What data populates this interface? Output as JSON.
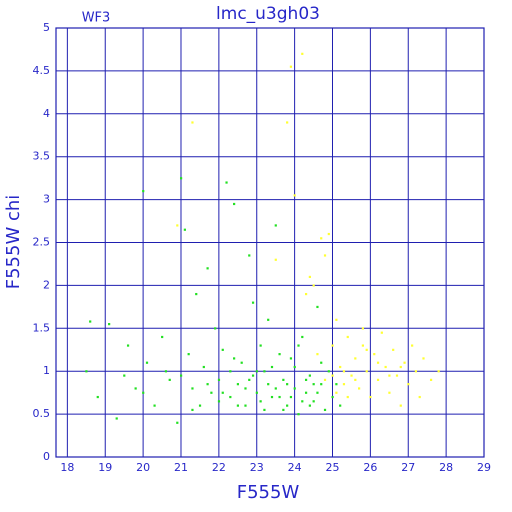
{
  "chart_data": {
    "type": "scatter",
    "title": "lmc_u3gh03",
    "subtitle": "WF3",
    "x_label": "F555W",
    "y_label": "F555W chi",
    "xlim": [
      17.7,
      29
    ],
    "ylim": [
      0,
      5
    ],
    "xticks": [
      18,
      19,
      20,
      21,
      22,
      23,
      24,
      25,
      26,
      27,
      28,
      29
    ],
    "yticks": [
      0,
      0.5,
      1,
      1.5,
      2,
      2.5,
      3,
      3.5,
      4,
      4.5,
      5
    ],
    "grid": true,
    "series": [
      {
        "color": "#22e022",
        "x": [
          18.5,
          18.6,
          18.8,
          19.1,
          19.3,
          19.6,
          19.8,
          20.0,
          20.1,
          20.3,
          20.5,
          20.7,
          20.9,
          21.0,
          21.1,
          21.2,
          21.3,
          21.4,
          21.5,
          21.6,
          21.7,
          21.8,
          21.9,
          22.0,
          22.1,
          22.2,
          22.3,
          22.4,
          22.5,
          22.6,
          22.7,
          22.8,
          22.9,
          23.0,
          23.1,
          23.2,
          23.3,
          23.4,
          23.5,
          23.6,
          23.7,
          23.8,
          23.9,
          24.0,
          24.1,
          24.2,
          24.3,
          24.4,
          24.5,
          24.6,
          24.7,
          24.8,
          24.9,
          25.0,
          25.2,
          22.3,
          22.7,
          23.1,
          23.5,
          23.9,
          24.3,
          24.7,
          25.1,
          22.5,
          23.0,
          23.4,
          23.8,
          24.2,
          24.6,
          21.0,
          21.3,
          22.0,
          22.4,
          22.8,
          23.2,
          23.6,
          24.0,
          24.4,
          20.0,
          21.7,
          23.3,
          22.9,
          24.1,
          20.6,
          19.5,
          22.1,
          23.7,
          24.5
        ],
        "values": [
          1.0,
          1.58,
          0.7,
          1.55,
          0.45,
          1.3,
          0.8,
          3.1,
          1.1,
          0.6,
          1.4,
          0.9,
          0.4,
          3.25,
          2.65,
          1.2,
          0.8,
          1.9,
          0.6,
          1.05,
          2.2,
          0.75,
          1.5,
          0.9,
          1.25,
          3.2,
          0.7,
          2.95,
          0.85,
          1.1,
          0.6,
          2.35,
          0.95,
          0.75,
          1.3,
          0.55,
          0.85,
          1.05,
          2.7,
          0.7,
          0.9,
          0.6,
          1.15,
          0.8,
          0.5,
          1.4,
          0.75,
          0.95,
          0.65,
          1.75,
          0.85,
          0.55,
          1.0,
          0.7,
          0.6,
          1.0,
          0.8,
          0.65,
          0.8,
          0.7,
          0.9,
          1.1,
          0.85,
          0.6,
          1.0,
          0.7,
          0.85,
          0.65,
          0.75,
          0.95,
          0.55,
          0.65,
          1.15,
          0.9,
          1.0,
          1.2,
          1.05,
          0.6,
          0.75,
          0.85,
          1.6,
          1.8,
          1.3,
          1.0,
          0.95,
          0.75,
          0.55,
          0.85
        ]
      },
      {
        "color": "#ffff30",
        "x": [
          24.6,
          24.8,
          25.0,
          25.1,
          25.2,
          25.3,
          25.4,
          25.5,
          25.6,
          25.7,
          25.8,
          25.9,
          26.0,
          26.1,
          26.2,
          26.3,
          26.4,
          26.5,
          26.6,
          26.7,
          26.8,
          26.9,
          27.0,
          27.1,
          27.2,
          27.3,
          27.4,
          27.6,
          27.8,
          25.3,
          25.6,
          25.9,
          26.2,
          26.5,
          26.8,
          25.0,
          25.4,
          24.7,
          24.5,
          24.9,
          24.2,
          23.9,
          23.8,
          21.3,
          20.9,
          24.0,
          24.3,
          24.4,
          25.1,
          25.8,
          23.5,
          24.8
        ],
        "values": [
          1.2,
          0.9,
          1.3,
          0.75,
          1.05,
          0.85,
          1.4,
          0.95,
          1.15,
          0.8,
          1.3,
          1.0,
          0.7,
          1.2,
          0.9,
          1.45,
          1.05,
          0.75,
          1.25,
          0.95,
          0.6,
          1.1,
          0.85,
          1.3,
          1.0,
          0.7,
          1.15,
          0.9,
          1.0,
          1.0,
          0.9,
          1.25,
          1.1,
          0.95,
          1.05,
          0.95,
          0.7,
          2.55,
          2.0,
          2.6,
          4.7,
          4.55,
          3.9,
          3.9,
          2.7,
          3.05,
          1.9,
          2.1,
          1.6,
          1.5,
          2.3,
          2.35
        ]
      }
    ]
  }
}
